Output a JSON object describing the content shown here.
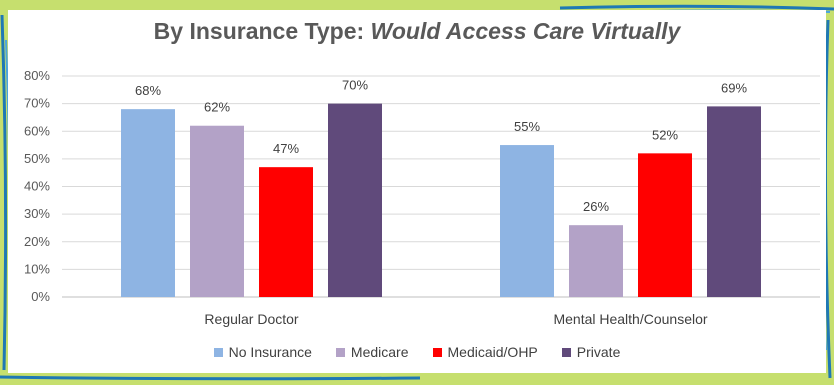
{
  "chart_data": {
    "type": "bar",
    "title": "By Insurance Type: ",
    "title_emphasis": "Would Access Care Virtually",
    "categories": [
      "Regular Doctor",
      "Mental Health/Counselor"
    ],
    "series": [
      {
        "name": "No Insurance",
        "color": "#8eb4e3",
        "values": [
          68,
          55
        ]
      },
      {
        "name": "Medicare",
        "color": "#b3a2c7",
        "values": [
          62,
          26
        ]
      },
      {
        "name": "Medicaid/OHP",
        "color": "#ff0000",
        "values": [
          47,
          52
        ]
      },
      {
        "name": "Private",
        "color": "#604a7b",
        "values": [
          70,
          69
        ]
      }
    ],
    "value_suffix": "%",
    "ylim": [
      0,
      80
    ],
    "yticks": [
      "0%",
      "10%",
      "20%",
      "30%",
      "40%",
      "50%",
      "60%",
      "70%",
      "80%"
    ],
    "xlabel": "",
    "ylabel": "",
    "legend_position": "bottom",
    "grid": true
  },
  "frame": {
    "background": "#c6df6e",
    "accent": "#1f78b4"
  }
}
